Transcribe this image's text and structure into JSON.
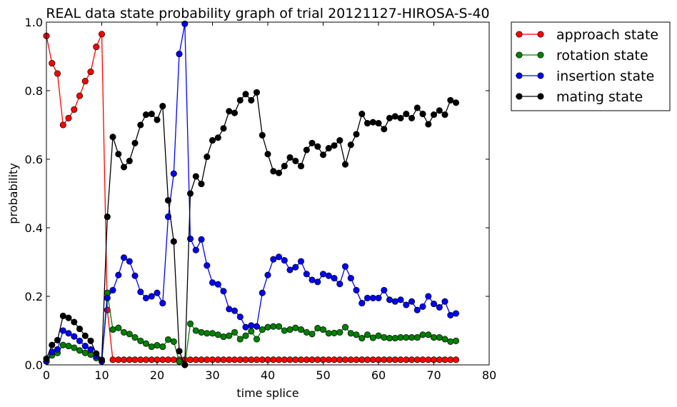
{
  "chart_data": {
    "type": "line",
    "title": "REAL data state probability graph of trial 20121127-HIROSA-S-40",
    "xlabel": "time splice",
    "ylabel": "probability",
    "xlim": [
      0,
      80
    ],
    "ylim": [
      0.0,
      1.0
    ],
    "xticks": [
      "0",
      "10",
      "20",
      "30",
      "40",
      "50",
      "60",
      "70",
      "80"
    ],
    "yticks": [
      "0.0",
      "0.2",
      "0.4",
      "0.6",
      "0.8",
      "1.0"
    ],
    "grid": false,
    "legend_placement": "outside-top-right",
    "series": [
      {
        "name": "approach state",
        "color": "#ff0000",
        "values": [
          0.96,
          0.88,
          0.85,
          0.7,
          0.72,
          0.745,
          0.785,
          0.828,
          0.855,
          0.928,
          0.965,
          0.16,
          0.015,
          0.015,
          0.015,
          0.015,
          0.015,
          0.015,
          0.015,
          0.015,
          0.015,
          0.015,
          0.015,
          0.015,
          0.015,
          0.015,
          0.015,
          0.015,
          0.015,
          0.015,
          0.015,
          0.015,
          0.015,
          0.015,
          0.015,
          0.015,
          0.015,
          0.015,
          0.015,
          0.015,
          0.015,
          0.015,
          0.015,
          0.015,
          0.015,
          0.015,
          0.015,
          0.015,
          0.015,
          0.015,
          0.015,
          0.015,
          0.015,
          0.015,
          0.015,
          0.015,
          0.015,
          0.015,
          0.015,
          0.015,
          0.015,
          0.015,
          0.015,
          0.015,
          0.015,
          0.015,
          0.015,
          0.015,
          0.015,
          0.015,
          0.015,
          0.015,
          0.015,
          0.015,
          0.015
        ]
      },
      {
        "name": "rotation state",
        "color": "#008000",
        "values": [
          0.01,
          0.028,
          0.035,
          0.058,
          0.055,
          0.05,
          0.042,
          0.035,
          0.03,
          0.02,
          0.012,
          0.21,
          0.103,
          0.108,
          0.095,
          0.09,
          0.08,
          0.07,
          0.062,
          0.053,
          0.057,
          0.053,
          0.074,
          0.068,
          0.01,
          0.0,
          0.12,
          0.1,
          0.095,
          0.092,
          0.092,
          0.088,
          0.082,
          0.085,
          0.095,
          0.075,
          0.085,
          0.098,
          0.075,
          0.103,
          0.11,
          0.112,
          0.112,
          0.1,
          0.103,
          0.108,
          0.103,
          0.095,
          0.09,
          0.107,
          0.103,
          0.092,
          0.093,
          0.095,
          0.11,
          0.092,
          0.088,
          0.078,
          0.088,
          0.079,
          0.085,
          0.08,
          0.078,
          0.078,
          0.08,
          0.08,
          0.08,
          0.08,
          0.088,
          0.088,
          0.08,
          0.08,
          0.075,
          0.068,
          0.07
        ]
      },
      {
        "name": "insertion state",
        "color": "#0000ff",
        "values": [
          0.01,
          0.038,
          0.045,
          0.1,
          0.092,
          0.083,
          0.07,
          0.055,
          0.045,
          0.025,
          0.01,
          0.195,
          0.218,
          0.262,
          0.313,
          0.302,
          0.26,
          0.213,
          0.195,
          0.2,
          0.21,
          0.18,
          0.432,
          0.558,
          0.907,
          0.995,
          0.368,
          0.335,
          0.366,
          0.29,
          0.24,
          0.235,
          0.215,
          0.163,
          0.158,
          0.14,
          0.11,
          0.115,
          0.112,
          0.21,
          0.262,
          0.308,
          0.315,
          0.305,
          0.277,
          0.285,
          0.302,
          0.265,
          0.248,
          0.242,
          0.265,
          0.26,
          0.253,
          0.236,
          0.287,
          0.253,
          0.218,
          0.18,
          0.195,
          0.195,
          0.195,
          0.218,
          0.19,
          0.185,
          0.19,
          0.175,
          0.185,
          0.16,
          0.17,
          0.2,
          0.178,
          0.168,
          0.185,
          0.145,
          0.15
        ]
      },
      {
        "name": "mating state",
        "color": "#000000",
        "values": [
          0.018,
          0.058,
          0.072,
          0.143,
          0.137,
          0.125,
          0.105,
          0.085,
          0.07,
          0.033,
          0.015,
          0.432,
          0.665,
          0.615,
          0.577,
          0.595,
          0.647,
          0.7,
          0.73,
          0.732,
          0.715,
          0.755,
          0.48,
          0.36,
          0.04,
          0.0,
          0.5,
          0.55,
          0.528,
          0.607,
          0.655,
          0.663,
          0.69,
          0.74,
          0.735,
          0.772,
          0.79,
          0.772,
          0.795,
          0.67,
          0.615,
          0.565,
          0.56,
          0.58,
          0.605,
          0.595,
          0.58,
          0.627,
          0.647,
          0.637,
          0.613,
          0.632,
          0.64,
          0.655,
          0.585,
          0.642,
          0.673,
          0.732,
          0.705,
          0.708,
          0.705,
          0.688,
          0.72,
          0.725,
          0.72,
          0.732,
          0.72,
          0.75,
          0.732,
          0.702,
          0.73,
          0.742,
          0.73,
          0.772,
          0.765
        ]
      }
    ]
  }
}
